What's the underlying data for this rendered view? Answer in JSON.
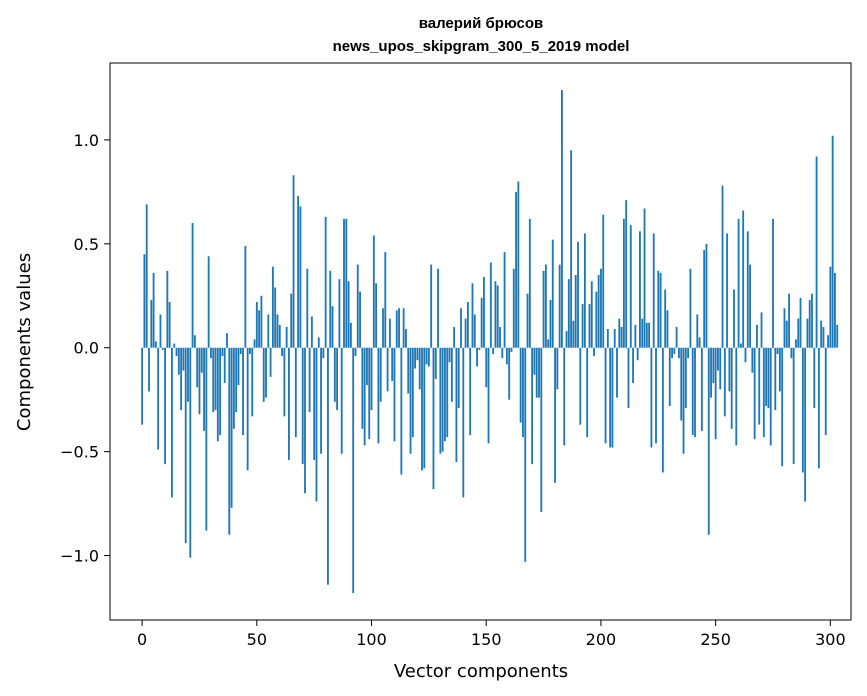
{
  "chart_data": {
    "type": "bar",
    "title": "валерий брюсов",
    "subtitle": "news_upos_skipgram_300_5_2019 model",
    "xlabel": "Vector components",
    "ylabel": "Components values",
    "xlim": [
      -14,
      309
    ],
    "ylim": [
      -1.31,
      1.37
    ],
    "xticks": [
      0,
      50,
      100,
      150,
      200,
      250,
      300
    ],
    "xtick_labels": [
      "0",
      "50",
      "100",
      "150",
      "200",
      "250",
      "300"
    ],
    "yticks": [
      -1.0,
      -0.5,
      0.0,
      0.5,
      1.0
    ],
    "ytick_labels": [
      "−1.0",
      "−0.5",
      "0.0",
      "0.5",
      "1.0"
    ],
    "grid": false,
    "color": "#1f77b4",
    "values": [
      -0.37,
      0.45,
      0.69,
      -0.21,
      0.23,
      0.36,
      0.03,
      -0.49,
      0.16,
      -0.01,
      -0.56,
      0.37,
      0.22,
      -0.72,
      0.02,
      -0.04,
      -0.13,
      -0.3,
      -0.11,
      -0.94,
      -0.26,
      -1.01,
      0.6,
      0.06,
      -0.19,
      -0.32,
      -0.12,
      -0.4,
      -0.88,
      0.44,
      -0.05,
      -0.31,
      -0.3,
      -0.45,
      -0.42,
      -0.04,
      -0.17,
      0.07,
      -0.9,
      -0.77,
      -0.39,
      -0.31,
      -0.18,
      -0.03,
      -0.42,
      0.49,
      -0.59,
      -0.03,
      -0.33,
      0.04,
      0.22,
      0.18,
      0.25,
      -0.26,
      -0.24,
      0.16,
      -0.14,
      0.39,
      0.29,
      0.16,
      0.11,
      -0.04,
      -0.33,
      0.1,
      -0.54,
      0.26,
      0.83,
      -0.43,
      0.73,
      0.68,
      -0.56,
      -0.7,
      0.38,
      -0.31,
      0.15,
      -0.54,
      -0.74,
      0.05,
      -0.51,
      -0.05,
      0.63,
      -1.14,
      0.37,
      0.2,
      -0.26,
      -0.3,
      0.33,
      -0.51,
      0.62,
      0.62,
      0.32,
      0.12,
      -1.18,
      -0.04,
      0.4,
      0.27,
      -0.39,
      -0.47,
      -0.18,
      -0.44,
      -0.3,
      0.54,
      0.31,
      -0.46,
      -0.26,
      0.19,
      0.46,
      -0.21,
      0.14,
      -0.16,
      -0.45,
      0.18,
      0.19,
      -0.61,
      0.19,
      0.09,
      -0.22,
      -0.51,
      -0.43,
      -0.1,
      -0.06,
      -0.2,
      -0.59,
      -0.58,
      -0.08,
      -0.09,
      0.4,
      -0.68,
      -0.15,
      0.38,
      -0.51,
      -0.5,
      -0.45,
      -0.43,
      -0.07,
      -0.26,
      0.1,
      -0.55,
      -0.29,
      0.19,
      -0.72,
      0.14,
      0.22,
      -0.42,
      0.31,
      0.16,
      -0.09,
      -0.01,
      0.24,
      0.34,
      -0.19,
      -0.46,
      0.41,
      -0.03,
      0.32,
      0.3,
      0.1,
      -0.05,
      0.46,
      -0.08,
      -0.25,
      -0.02,
      0.38,
      0.75,
      0.8,
      -0.36,
      -0.43,
      -1.03,
      0.26,
      0.62,
      -0.56,
      -0.13,
      -0.24,
      -0.24,
      -0.79,
      0.37,
      0.4,
      0.04,
      0.23,
      0.52,
      -0.65,
      -0.2,
      0.4,
      1.24,
      -0.47,
      0.08,
      0.33,
      0.95,
      0.13,
      0.35,
      0.51,
      -0.37,
      0.21,
      0.55,
      -0.43,
      0.21,
      0.32,
      -0.04,
      0.27,
      0.35,
      0.38,
      0.64,
      -0.46,
      0.09,
      -0.48,
      -0.48,
      0.09,
      -0.24,
      0.14,
      0.1,
      0.62,
      0.71,
      -0.29,
      0.59,
      -0.17,
      0.11,
      -0.06,
      0.56,
      0.14,
      0.67,
      0.12,
      0.12,
      -0.48,
      0.55,
      -0.46,
      0.37,
      0.36,
      -0.6,
      0.28,
      0.18,
      -0.28,
      -0.05,
      -0.03,
      0.1,
      -0.05,
      -0.35,
      -0.51,
      -0.29,
      -0.05,
      0.38,
      -0.42,
      -0.43,
      0.16,
      0.05,
      -0.4,
      0.47,
      0.5,
      -0.9,
      -0.24,
      -0.17,
      -0.44,
      -0.11,
      -0.2,
      0.78,
      -0.33,
      0.55,
      -0.21,
      -0.39,
      0.28,
      -0.47,
      0.62,
      0.02,
      0.66,
      -0.07,
      0.56,
      0.4,
      -0.12,
      -0.44,
      0.11,
      -0.37,
      0.17,
      -0.43,
      -0.28,
      -0.29,
      -0.47,
      0.62,
      -0.3,
      -0.03,
      -0.21,
      -0.57,
      0.19,
      0.13,
      0.26,
      -0.05,
      -0.56,
      0.04,
      0.14,
      0.24,
      -0.6,
      -0.74,
      0.14,
      0.23,
      0.26,
      -0.29,
      0.92,
      -0.58,
      0.13,
      0.1,
      -0.42,
      0.06,
      0.39,
      1.02,
      0.36,
      0.11
    ]
  }
}
